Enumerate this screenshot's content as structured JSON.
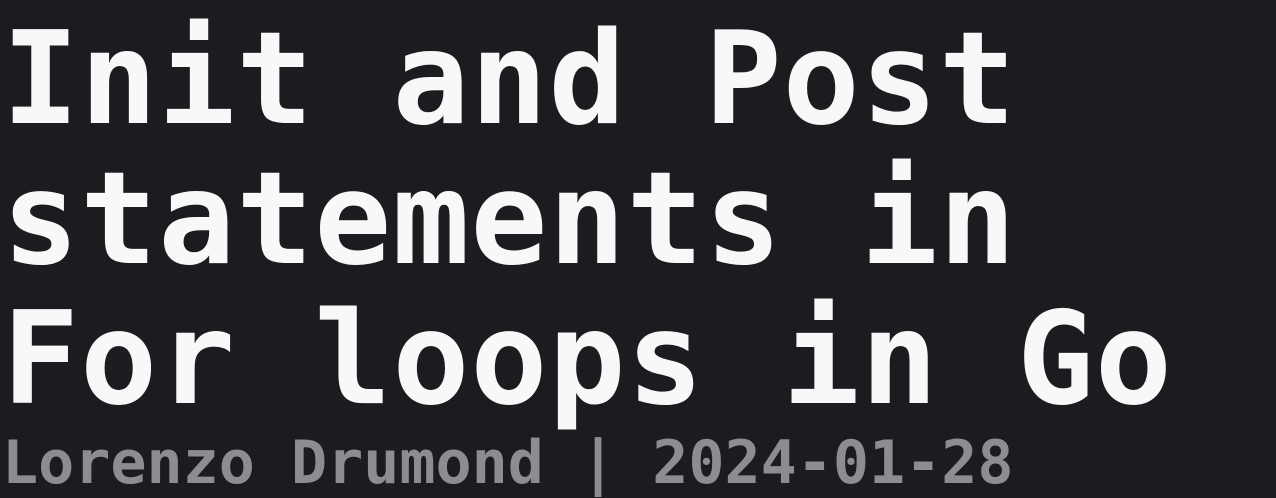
{
  "post": {
    "title_lines": [
      "Init and Post",
      "statements in",
      "For loops in Go"
    ],
    "author": "Lorenzo Drumond",
    "separator": "|",
    "date": "2024-01-28"
  },
  "colors": {
    "background": "#1c1c20",
    "title": "#f8f8f8",
    "meta": "#8c8d91"
  }
}
